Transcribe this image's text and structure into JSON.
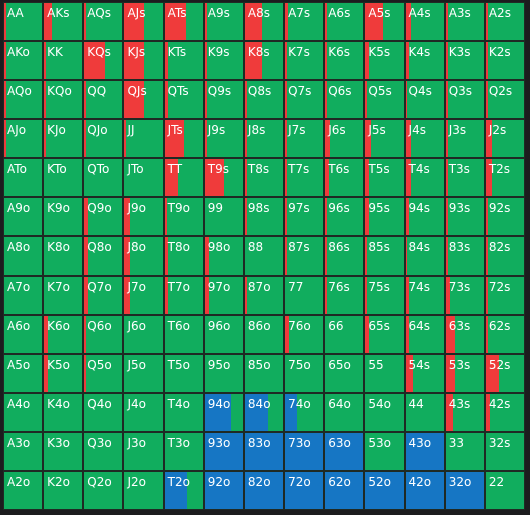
{
  "colors": {
    "fold": "#11ad5e",
    "raise": "#ef3b3b",
    "call": "#1676c4",
    "grid": "#1f2a24"
  },
  "ranks": [
    "A",
    "K",
    "Q",
    "J",
    "T",
    "9",
    "8",
    "7",
    "6",
    "5",
    "4",
    "3",
    "2"
  ],
  "hands": [
    [
      "AA",
      "AKs",
      "AQs",
      "AJs",
      "ATs",
      "A9s",
      "A8s",
      "A7s",
      "A6s",
      "A5s",
      "A4s",
      "A3s",
      "A2s"
    ],
    [
      "AKo",
      "KK",
      "KQs",
      "KJs",
      "KTs",
      "K9s",
      "K8s",
      "K7s",
      "K6s",
      "K5s",
      "K4s",
      "K3s",
      "K2s"
    ],
    [
      "AQo",
      "KQo",
      "QQ",
      "QJs",
      "QTs",
      "Q9s",
      "Q8s",
      "Q7s",
      "Q6s",
      "Q5s",
      "Q4s",
      "Q3s",
      "Q2s"
    ],
    [
      "AJo",
      "KJo",
      "QJo",
      "JJ",
      "JTs",
      "J9s",
      "J8s",
      "J7s",
      "J6s",
      "J5s",
      "J4s",
      "J3s",
      "J2s"
    ],
    [
      "ATo",
      "KTo",
      "QTo",
      "JTo",
      "TT",
      "T9s",
      "T8s",
      "T7s",
      "T6s",
      "T5s",
      "T4s",
      "T3s",
      "T2s"
    ],
    [
      "A9o",
      "K9o",
      "Q9o",
      "J9o",
      "T9o",
      "99",
      "98s",
      "97s",
      "96s",
      "95s",
      "94s",
      "93s",
      "92s"
    ],
    [
      "A8o",
      "K8o",
      "Q8o",
      "J8o",
      "T8o",
      "98o",
      "88",
      "87s",
      "86s",
      "85s",
      "84s",
      "83s",
      "82s"
    ],
    [
      "A7o",
      "K7o",
      "Q7o",
      "J7o",
      "T7o",
      "97o",
      "87o",
      "77",
      "76s",
      "75s",
      "74s",
      "73s",
      "72s"
    ],
    [
      "A6o",
      "K6o",
      "Q6o",
      "J6o",
      "T6o",
      "96o",
      "86o",
      "76o",
      "66",
      "65s",
      "64s",
      "63s",
      "62s"
    ],
    [
      "A5o",
      "K5o",
      "Q5o",
      "J5o",
      "T5o",
      "95o",
      "85o",
      "75o",
      "65o",
      "55",
      "54s",
      "53s",
      "52s"
    ],
    [
      "A4o",
      "K4o",
      "Q4o",
      "J4o",
      "T4o",
      "94o",
      "84o",
      "74o",
      "64o",
      "54o",
      "44",
      "43s",
      "42s"
    ],
    [
      "A3o",
      "K3o",
      "Q3o",
      "J3o",
      "T3o",
      "93o",
      "83o",
      "73o",
      "63o",
      "53o",
      "43o",
      "33",
      "32s"
    ],
    [
      "A2o",
      "K2o",
      "Q2o",
      "J2o",
      "T2o",
      "92o",
      "82o",
      "72o",
      "62o",
      "52o",
      "42o",
      "32o",
      "22"
    ]
  ],
  "raise_freq": [
    [
      0.05,
      0.2,
      0.05,
      0.5,
      0.55,
      0.05,
      0.45,
      0.08,
      0.05,
      0.45,
      0.15,
      0.05,
      0.05
    ],
    [
      0.05,
      0.05,
      0.55,
      0.5,
      0.1,
      0.05,
      0.45,
      0.05,
      0.05,
      0.1,
      0.1,
      0.05,
      0.05
    ],
    [
      0.05,
      0.05,
      0.05,
      0.5,
      0.1,
      0.05,
      0.05,
      0.05,
      0.05,
      0.05,
      0.05,
      0.05,
      0.05
    ],
    [
      0.05,
      0.05,
      0.05,
      0.05,
      0.5,
      0.05,
      0.05,
      0.05,
      0.12,
      0.15,
      0.15,
      0.05,
      0.15
    ],
    [
      0,
      0,
      0,
      0,
      0.35,
      0.5,
      0.05,
      0.05,
      0.1,
      0.1,
      0.15,
      0.05,
      0.15
    ],
    [
      0,
      0,
      0.1,
      0.15,
      0.05,
      0,
      0.05,
      0.05,
      0.05,
      0.1,
      0.1,
      0.05,
      0.05
    ],
    [
      0,
      0,
      0.1,
      0.15,
      0.1,
      0.1,
      0,
      0.05,
      0.05,
      0.05,
      0.05,
      0.05,
      0.05
    ],
    [
      0,
      0,
      0.1,
      0.15,
      0.1,
      0.1,
      0.05,
      0,
      0.05,
      0.05,
      0.1,
      0.1,
      0.05
    ],
    [
      0,
      0.1,
      0.05,
      0,
      0,
      0,
      0,
      0.1,
      0,
      0.1,
      0.1,
      0.25,
      0.05
    ],
    [
      0,
      0.1,
      0.05,
      0,
      0,
      0,
      0,
      0,
      0,
      0,
      0.2,
      0.25,
      0.35
    ],
    [
      0,
      0,
      0,
      0,
      0,
      0,
      0,
      0,
      0,
      0,
      0,
      0.2,
      0.1
    ],
    [
      0,
      0,
      0,
      0,
      0,
      0,
      0,
      0,
      0,
      0,
      0,
      0,
      0
    ],
    [
      0,
      0,
      0,
      0,
      0,
      0,
      0,
      0,
      0,
      0,
      0,
      0,
      0
    ]
  ],
  "call_freq": [
    [
      0,
      0,
      0,
      0,
      0,
      0,
      0,
      0,
      0,
      0,
      0,
      0,
      0
    ],
    [
      0,
      0,
      0,
      0,
      0,
      0,
      0,
      0,
      0,
      0,
      0,
      0,
      0
    ],
    [
      0,
      0,
      0,
      0,
      0,
      0,
      0,
      0,
      0,
      0,
      0,
      0,
      0
    ],
    [
      0,
      0,
      0,
      0,
      0,
      0,
      0,
      0,
      0,
      0,
      0,
      0,
      0
    ],
    [
      0,
      0,
      0,
      0,
      0,
      0,
      0,
      0,
      0,
      0,
      0,
      0,
      0
    ],
    [
      0,
      0,
      0,
      0,
      0,
      0,
      0,
      0,
      0,
      0,
      0,
      0,
      0
    ],
    [
      0,
      0,
      0,
      0,
      0,
      0,
      0,
      0,
      0,
      0,
      0,
      0,
      0
    ],
    [
      0,
      0,
      0,
      0,
      0,
      0,
      0,
      0,
      0,
      0,
      0,
      0,
      0
    ],
    [
      0,
      0,
      0,
      0,
      0,
      0,
      0,
      0,
      0,
      0,
      0,
      0,
      0
    ],
    [
      0,
      0,
      0,
      0,
      0,
      0,
      0,
      0,
      0,
      0,
      0,
      0,
      0
    ],
    [
      0,
      0,
      0,
      0,
      0,
      0.7,
      0.6,
      0.3,
      0,
      0,
      0,
      0,
      0
    ],
    [
      0,
      0,
      0,
      0,
      0,
      1,
      1,
      1,
      1,
      0,
      1,
      0,
      0
    ],
    [
      0,
      0,
      0,
      0,
      0.6,
      1,
      1,
      1,
      1,
      1,
      1,
      1,
      0
    ]
  ]
}
